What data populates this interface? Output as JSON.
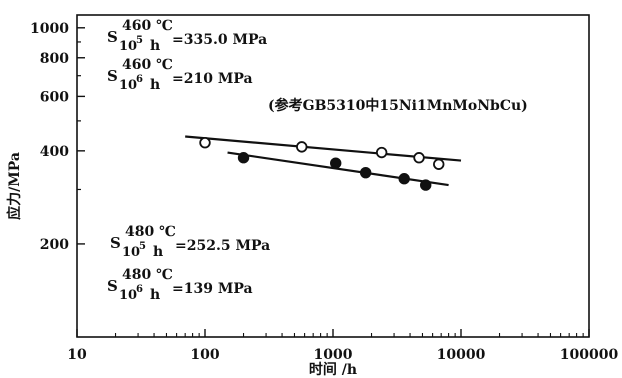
{
  "chart_data": {
    "type": "scatter",
    "xscale": "log",
    "yscale": "log",
    "xlim": [
      10,
      100000
    ],
    "ylim": [
      100,
      1100
    ],
    "x_ticks": [
      "10",
      "100",
      "1000",
      "10000",
      "100000"
    ],
    "y_ticks": [
      "1000",
      "800",
      "600",
      "400",
      "200"
    ],
    "xlabel": "时间 /h",
    "ylabel": "应力/MPa",
    "series": [
      {
        "marker": "open-circle",
        "x": [
          100,
          570,
          2400,
          4700,
          6700
        ],
        "y": [
          425,
          412,
          395,
          380,
          362
        ],
        "trend": {
          "x": [
            70,
            10000
          ],
          "y": [
            445,
            372
          ]
        }
      },
      {
        "marker": "filled-circle",
        "x": [
          200,
          1050,
          1800,
          3600,
          5300
        ],
        "y": [
          380,
          365,
          340,
          325,
          310
        ],
        "trend": {
          "x": [
            150,
            8000
          ],
          "y": [
            395,
            310
          ]
        }
      }
    ],
    "annotations": {
      "source": "(参考GB5310中15Ni1MnMoNbCu)",
      "s460_1e5": {
        "temp": "460 ℃",
        "exp": "5",
        "value": "=335.0 MPa"
      },
      "s460_1e6": {
        "temp": "460 ℃",
        "exp": "6",
        "value": "=210 MPa"
      },
      "s480_1e5": {
        "temp": "480 ℃",
        "exp": "5",
        "value": "=252.5 MPa"
      },
      "s480_1e6": {
        "temp": "480 ℃",
        "exp": "6",
        "value": "=139 MPa"
      },
      "S": "S",
      "base10": "10",
      "h": "h"
    }
  }
}
